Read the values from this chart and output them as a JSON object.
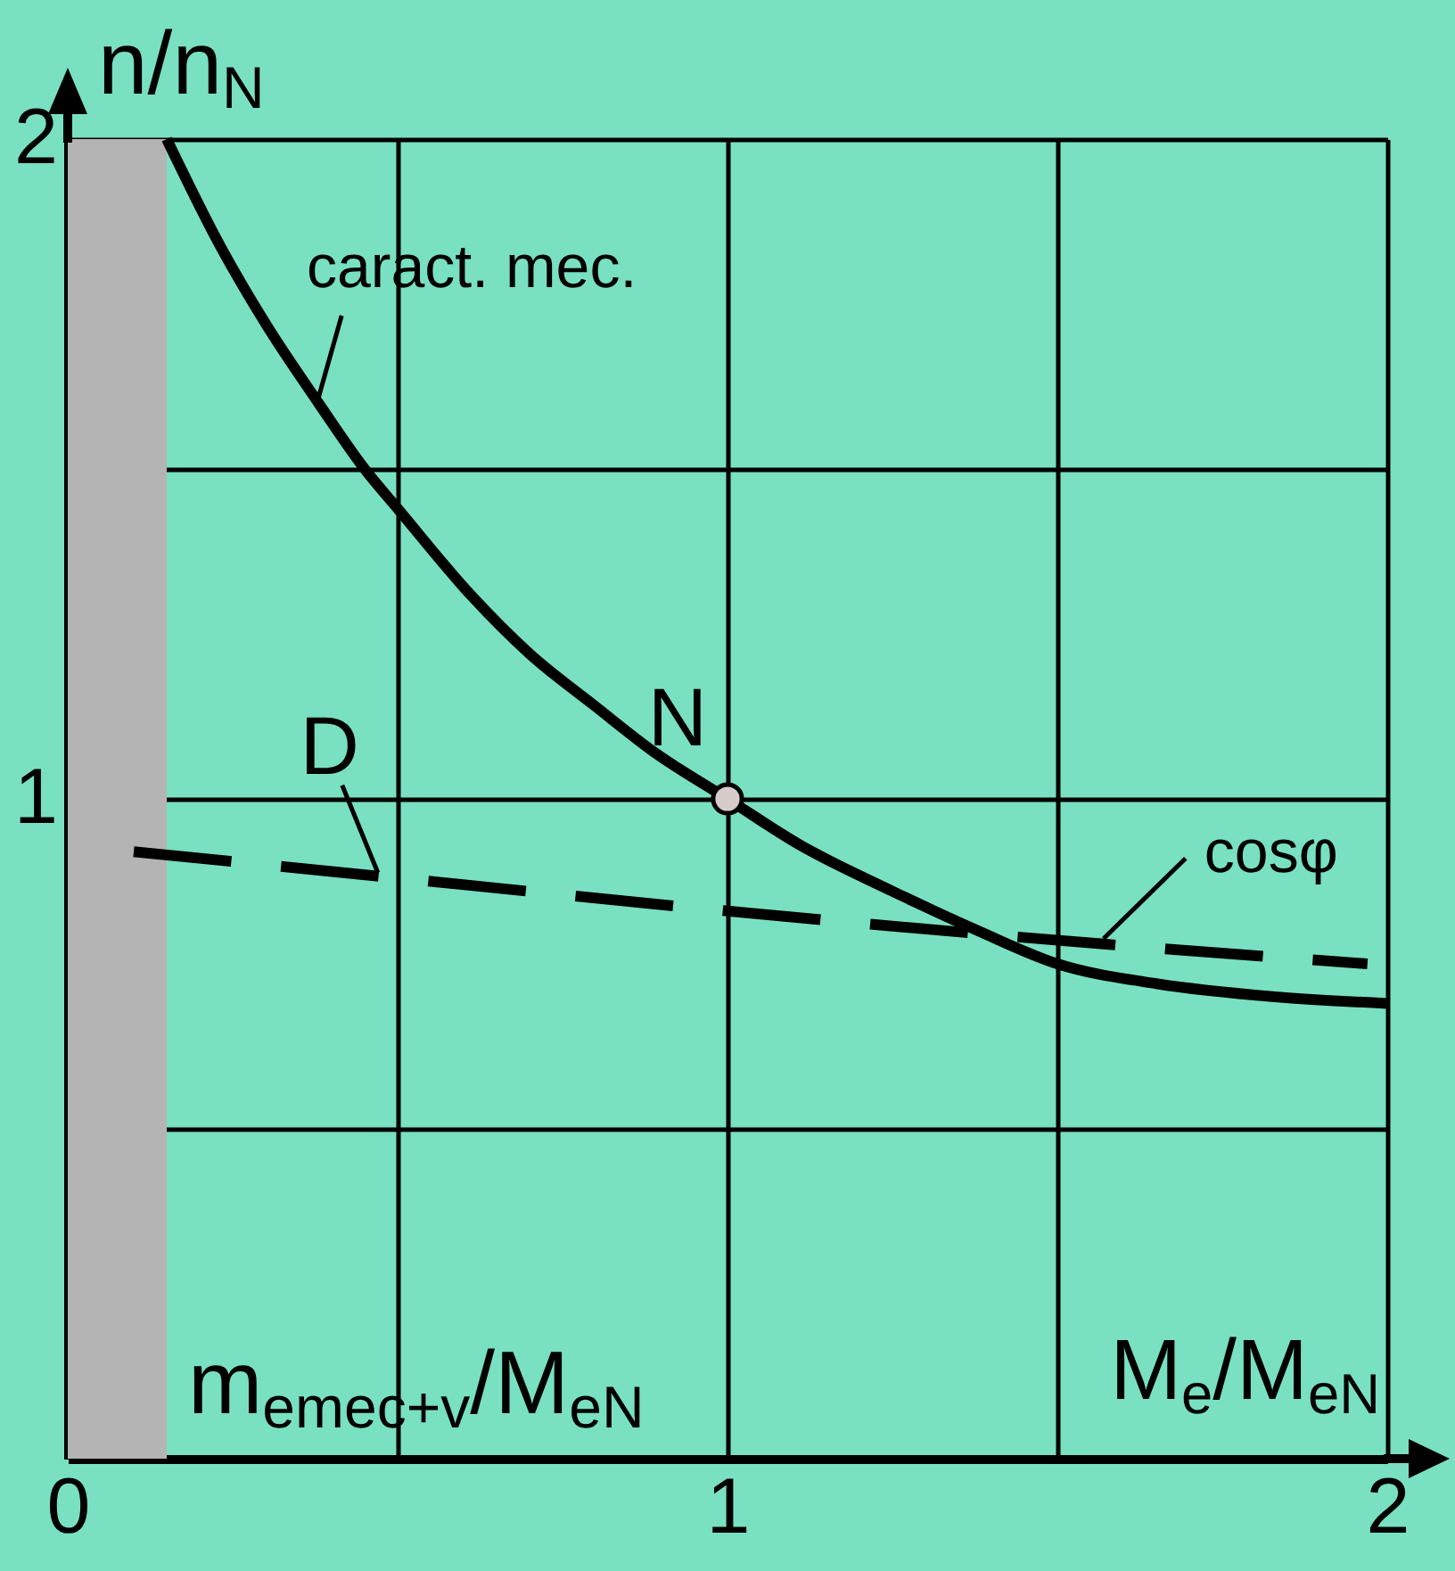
{
  "chart_data": {
    "type": "line",
    "xlabel": "M$_{e}$/M$_{eN}$",
    "ylabel": "n/n$_{N}$",
    "xlim": [
      0,
      2
    ],
    "ylim": [
      0,
      2
    ],
    "xticks": [
      0,
      {
        "value": 0.5,
        "label": null
      },
      1,
      {
        "value": 1.5,
        "label": null
      },
      2
    ],
    "yticks": [
      {
        "value": 0.5,
        "label": null
      },
      1,
      {
        "value": 1.5,
        "label": null
      },
      2
    ],
    "grid": true,
    "series": [
      {
        "name": "caract. mec.",
        "color": "#000000",
        "line_style": "solid",
        "x": [
          0.15,
          0.23,
          0.3,
          0.38,
          0.45,
          0.5,
          0.61,
          0.7,
          0.8,
          0.89,
          1.0,
          1.11,
          1.25,
          1.38,
          1.5,
          1.65,
          1.83,
          2.0
        ],
        "values": [
          2.0,
          1.84,
          1.72,
          1.6,
          1.5,
          1.44,
          1.31,
          1.22,
          1.14,
          1.07,
          1.0,
          0.93,
          0.86,
          0.8,
          0.75,
          0.72,
          0.7,
          0.69
        ]
      },
      {
        "name": "cosφ",
        "color": "#000000",
        "line_style": "dashed",
        "x": [
          0.1,
          0.5,
          1.0,
          1.57,
          1.97
        ],
        "values": [
          0.92,
          0.88,
          0.83,
          0.78,
          0.75
        ]
      },
      {
        "type": "scatter",
        "color": "#d6cccc",
        "marker": "circle",
        "x": [
          1
        ],
        "values": [
          1
        ]
      }
    ],
    "bands": [
      {
        "axis": "x",
        "from": 0,
        "to": 0.15,
        "label": "m$_{emec+v}$/M$_{eN}$",
        "color": "#b4b4b4"
      }
    ],
    "annotations": [
      {
        "text": "D",
        "x": 0.47,
        "y": 0.88
      },
      {
        "text": "N",
        "x": 1,
        "y": 1
      }
    ]
  }
}
